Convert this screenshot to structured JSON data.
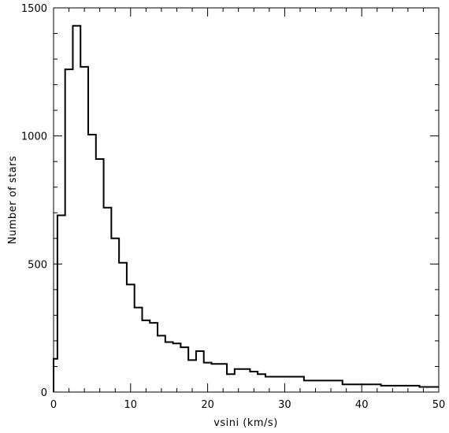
{
  "chart_data": {
    "type": "histogram",
    "title": "",
    "xlabel": "vsini  (km/s)",
    "ylabel": "Number of stars",
    "xlim": [
      0,
      50
    ],
    "ylim": [
      0,
      1500
    ],
    "x_ticks": [
      0,
      10,
      20,
      30,
      40,
      50
    ],
    "y_ticks": [
      0,
      500,
      1000,
      1500
    ],
    "x_minor_step": 2,
    "y_minor_step": 100,
    "grid": false,
    "bin_edges": [
      0,
      0.5,
      1.5,
      2.5,
      3.5,
      4.5,
      5.5,
      6.5,
      7.5,
      8.5,
      9.5,
      10.5,
      11.5,
      12.5,
      13.5,
      14.5,
      15.5,
      16.5,
      17.5,
      18.5,
      19.5,
      20.5,
      22.5,
      23.5,
      25.5,
      26.5,
      27.5,
      32.5,
      37.5,
      42.5,
      47.5,
      50
    ],
    "counts": [
      130,
      690,
      1260,
      1430,
      1270,
      1005,
      910,
      720,
      600,
      505,
      420,
      330,
      280,
      270,
      220,
      195,
      190,
      175,
      125,
      160,
      115,
      110,
      70,
      90,
      80,
      70,
      60,
      45,
      30,
      25,
      20
    ]
  }
}
